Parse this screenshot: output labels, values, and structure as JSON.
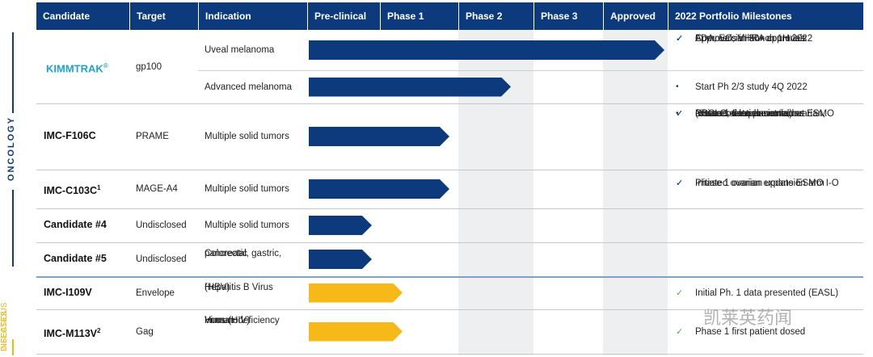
{
  "header": {
    "columns": [
      "Candidate",
      "Target",
      "Indication",
      "Pre-clinical",
      "Phase 1",
      "Phase 2",
      "Phase 3",
      "Approved",
      "2022 Portfolio Milestones"
    ]
  },
  "side_labels": {
    "oncology": "ONCOLOGY",
    "infectious": [
      "INFECTIOUS",
      "DISEASES"
    ]
  },
  "rows": [
    {
      "candidate": "KIMMTRAK",
      "sup": "®",
      "target": "gp100",
      "indications": [
        {
          "lines": [
            "Uveal melanoma"
          ],
          "milestones": [
            {
              "marker": "✓",
              "lines": [
                "FDA, EC, MHRA approvals"
              ]
            },
            {
              "marker": "✓",
              "lines": [
                "Approvals in 30+ countries"
              ]
            },
            {
              "marker": "✓",
              "lines": [
                "Commercial launch 1H 2022"
              ]
            }
          ]
        },
        {
          "lines": [
            "Advanced melanoma"
          ],
          "milestones": [
            {
              "marker": "•",
              "lines": [
                "Start Ph 2/3 study 4Q 2022"
              ]
            }
          ]
        }
      ]
    },
    {
      "candidate": "IMC-F106C",
      "target": "PRAME",
      "indications": [
        {
          "lines": [
            "Multiple solid tumors"
          ],
          "milestones": [
            {
              "marker": "✓",
              "lines": [
                "Phase 1 data presented at ESMO"
              ]
            },
            {
              "marker": "✓",
              "lines": [
                "Initiated 4 expansion arms",
                "(cutaneous melanoma, ovarian,",
                "NSCLC, & endometrial)"
              ]
            },
            {
              "marker": "•",
              "lines": [
                "Dose escalation continues"
              ]
            }
          ]
        }
      ]
    },
    {
      "candidate": "IMC-C103C",
      "sup": "1",
      "target": "MAGE-A4",
      "indications": [
        {
          "lines": [
            "Multiple solid tumors"
          ],
          "milestones": [
            {
              "marker": "✓",
              "lines": [
                "Initiated ovarian expansion arm"
              ]
            },
            {
              "marker": "✓",
              "lines": [
                "Phase 1 ovarian update ESMO I-O"
              ]
            }
          ]
        }
      ]
    },
    {
      "candidate": "Candidate #4",
      "target": "Undisclosed",
      "indications": [
        {
          "lines": [
            "Multiple solid tumors"
          ],
          "milestones": []
        }
      ]
    },
    {
      "candidate": "Candidate #5",
      "target": "Undisclosed",
      "indications": [
        {
          "lines": [
            "Colorectal, gastric,",
            "pancreatic"
          ],
          "milestones": []
        }
      ]
    },
    {
      "candidate": "IMC-I109V",
      "target": "Envelope",
      "indications": [
        {
          "lines": [
            "Hepatitis B Virus",
            "(HBV)"
          ],
          "milestones": [
            {
              "marker": "✓",
              "lines": [
                "Initial Ph. 1 data presented (EASL)"
              ]
            }
          ]
        }
      ]
    },
    {
      "candidate": "IMC-M113V",
      "sup": "2",
      "target": "Gag",
      "indications": [
        {
          "lines": [
            "Human",
            "Immunodeficiency",
            "Virus (HIV)"
          ],
          "milestones": [
            {
              "marker": "✓",
              "lines": [
                "Phase 1 first patient dosed"
              ]
            }
          ]
        }
      ]
    }
  ],
  "watermark": "凯莱英药闻"
}
